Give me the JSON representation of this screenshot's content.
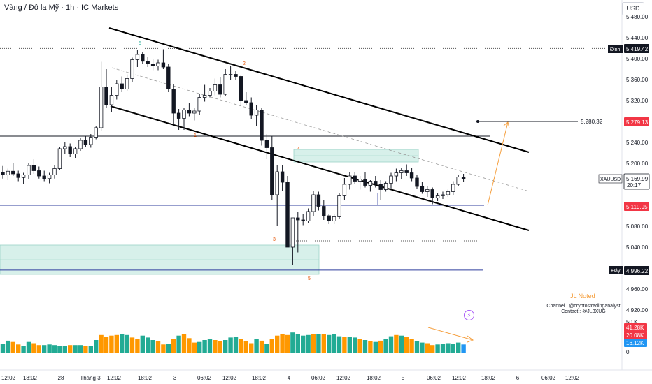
{
  "header": {
    "title": "Vàng / Đô la Mỹ · 1h · IC Markets",
    "currency": "USD"
  },
  "labels": {
    "top_label": "Đỉnh",
    "top_value": "5,419.42",
    "bottom_label": "Đáy",
    "bottom_value": "4,996.22",
    "target_value": "5,280.32",
    "level_high": "5,279.13",
    "symbol": "XAUUSD",
    "symbol_price": "5,169.99",
    "countdown": "20:17",
    "level_low": "5,119.95",
    "wave_5_top": "5",
    "wave_1": "1",
    "wave_2": "2",
    "wave_3": "3",
    "wave_4": "4",
    "wave_5_bottom": "5",
    "jl_note": "JL Noted",
    "channel_line1": "Channel : @cryptostradinganalyst",
    "channel_line2": "Contact : @JL3XUG",
    "alert_icon_glyph": "⚡"
  },
  "colors": {
    "up": "#131722",
    "down": "#131722",
    "vol_up": "#22ab94",
    "vol_down": "#ff9800",
    "vol_last": "#2196f3",
    "red_badge": "#f23645",
    "navy_badge": "#131722",
    "level_blue": "#2f3e9e",
    "zone": "#b2dfdb",
    "arrow": "#f59e3c"
  },
  "chart_data": {
    "type": "candlestick",
    "timeframe": "1h",
    "y_axis": {
      "min": 4940,
      "max": 5500,
      "ticks": [
        5480,
        5440,
        5400,
        5360,
        5320,
        5280,
        5240,
        5200,
        5160,
        5120,
        5080,
        5040,
        5000,
        4960,
        4920
      ]
    },
    "x_axis": {
      "ticks": [
        "12:02",
        "18:02",
        "28",
        "Tháng 3",
        "12:02",
        "18:02",
        "3",
        "06:02",
        "12:02",
        "18:02",
        "4",
        "06:02",
        "12:02",
        "18:02",
        "5",
        "06:02",
        "12:02",
        "18:02",
        "6",
        "06:02",
        "12:02"
      ]
    },
    "candles": [
      [
        5183,
        5195,
        5171,
        5178
      ],
      [
        5178,
        5190,
        5168,
        5185
      ],
      [
        5185,
        5200,
        5176,
        5180
      ],
      [
        5180,
        5186,
        5166,
        5173
      ],
      [
        5173,
        5182,
        5160,
        5178
      ],
      [
        5178,
        5200,
        5170,
        5196
      ],
      [
        5196,
        5208,
        5180,
        5186
      ],
      [
        5186,
        5194,
        5171,
        5176
      ],
      [
        5176,
        5186,
        5166,
        5171
      ],
      [
        5171,
        5182,
        5162,
        5178
      ],
      [
        5178,
        5196,
        5171,
        5190
      ],
      [
        5190,
        5232,
        5188,
        5228
      ],
      [
        5228,
        5240,
        5218,
        5232
      ],
      [
        5232,
        5238,
        5212,
        5218
      ],
      [
        5218,
        5232,
        5210,
        5228
      ],
      [
        5228,
        5248,
        5224,
        5244
      ],
      [
        5244,
        5252,
        5232,
        5236
      ],
      [
        5236,
        5256,
        5230,
        5250
      ],
      [
        5250,
        5272,
        5246,
        5268
      ],
      [
        5268,
        5394,
        5262,
        5346
      ],
      [
        5346,
        5380,
        5306,
        5312
      ],
      [
        5312,
        5346,
        5298,
        5330
      ],
      [
        5330,
        5360,
        5322,
        5352
      ],
      [
        5352,
        5366,
        5336,
        5342
      ],
      [
        5342,
        5370,
        5338,
        5362
      ],
      [
        5362,
        5402,
        5356,
        5398
      ],
      [
        5398,
        5416,
        5384,
        5408
      ],
      [
        5408,
        5413,
        5390,
        5395
      ],
      [
        5395,
        5404,
        5384,
        5390
      ],
      [
        5390,
        5400,
        5378,
        5386
      ],
      [
        5386,
        5398,
        5378,
        5392
      ],
      [
        5392,
        5418,
        5380,
        5384
      ],
      [
        5384,
        5390,
        5336,
        5342
      ],
      [
        5342,
        5352,
        5272,
        5296
      ],
      [
        5296,
        5304,
        5264,
        5286
      ],
      [
        5286,
        5306,
        5264,
        5302
      ],
      [
        5302,
        5316,
        5290,
        5296
      ],
      [
        5296,
        5306,
        5282,
        5300
      ],
      [
        5300,
        5332,
        5292,
        5326
      ],
      [
        5326,
        5350,
        5318,
        5330
      ],
      [
        5330,
        5344,
        5326,
        5338
      ],
      [
        5338,
        5362,
        5330,
        5350
      ],
      [
        5350,
        5364,
        5326,
        5332
      ],
      [
        5332,
        5380,
        5328,
        5370
      ],
      [
        5370,
        5386,
        5360,
        5370
      ],
      [
        5370,
        5376,
        5360,
        5366
      ],
      [
        5366,
        5368,
        5312,
        5320
      ],
      [
        5320,
        5336,
        5312,
        5316
      ],
      [
        5316,
        5326,
        5284,
        5292
      ],
      [
        5292,
        5312,
        5272,
        5302
      ],
      [
        5302,
        5306,
        5234,
        5244
      ],
      [
        5244,
        5256,
        5208,
        5230
      ],
      [
        5230,
        5252,
        5130,
        5140
      ],
      [
        5140,
        5196,
        5080,
        5184
      ],
      [
        5184,
        5196,
        5148,
        5164
      ],
      [
        5164,
        5176,
        5040,
        5040
      ],
      [
        5040,
        5096,
        5006,
        5096
      ],
      [
        5096,
        5108,
        5030,
        5092
      ],
      [
        5092,
        5104,
        5082,
        5090
      ],
      [
        5090,
        5114,
        5086,
        5108
      ],
      [
        5108,
        5148,
        5100,
        5140
      ],
      [
        5140,
        5146,
        5110,
        5118
      ],
      [
        5118,
        5130,
        5092,
        5100
      ],
      [
        5100,
        5104,
        5084,
        5090
      ],
      [
        5090,
        5104,
        5084,
        5098
      ],
      [
        5098,
        5144,
        5094,
        5138
      ],
      [
        5138,
        5172,
        5130,
        5160
      ],
      [
        5160,
        5184,
        5150,
        5176
      ],
      [
        5176,
        5184,
        5160,
        5166
      ],
      [
        5166,
        5176,
        5150,
        5170
      ],
      [
        5170,
        5184,
        5154,
        5158
      ],
      [
        5158,
        5168,
        5146,
        5166
      ],
      [
        5166,
        5176,
        5154,
        5160
      ],
      [
        5160,
        5168,
        5130,
        5150
      ],
      [
        5150,
        5166,
        5146,
        5162
      ],
      [
        5162,
        5182,
        5152,
        5176
      ],
      [
        5176,
        5190,
        5166,
        5182
      ],
      [
        5182,
        5192,
        5170,
        5186
      ],
      [
        5186,
        5198,
        5176,
        5182
      ],
      [
        5182,
        5192,
        5166,
        5172
      ],
      [
        5172,
        5178,
        5152,
        5156
      ],
      [
        5156,
        5164,
        5142,
        5146
      ],
      [
        5146,
        5156,
        5136,
        5150
      ],
      [
        5150,
        5154,
        5122,
        5134
      ],
      [
        5134,
        5144,
        5128,
        5138
      ],
      [
        5138,
        5146,
        5132,
        5140
      ],
      [
        5140,
        5150,
        5136,
        5146
      ],
      [
        5146,
        5166,
        5140,
        5160
      ],
      [
        5160,
        5178,
        5156,
        5174
      ],
      [
        5174,
        5180,
        5164,
        5170
      ]
    ],
    "volume": [
      [
        14,
        1
      ],
      [
        19,
        1
      ],
      [
        17,
        0
      ],
      [
        13,
        0
      ],
      [
        11,
        1
      ],
      [
        17,
        1
      ],
      [
        15,
        0
      ],
      [
        12,
        0
      ],
      [
        12,
        1
      ],
      [
        13,
        1
      ],
      [
        12,
        1
      ],
      [
        10,
        1
      ],
      [
        11,
        1
      ],
      [
        12,
        0
      ],
      [
        12,
        1
      ],
      [
        12,
        1
      ],
      [
        10,
        0
      ],
      [
        11,
        1
      ],
      [
        20,
        1
      ],
      [
        28,
        0
      ],
      [
        25,
        0
      ],
      [
        27,
        0
      ],
      [
        28,
        0
      ],
      [
        30,
        1
      ],
      [
        28,
        1
      ],
      [
        24,
        0
      ],
      [
        22,
        0
      ],
      [
        27,
        1
      ],
      [
        24,
        1
      ],
      [
        20,
        1
      ],
      [
        18,
        0
      ],
      [
        13,
        0
      ],
      [
        14,
        1
      ],
      [
        22,
        0
      ],
      [
        27,
        1
      ],
      [
        30,
        0
      ],
      [
        23,
        0
      ],
      [
        16,
        0
      ],
      [
        17,
        1
      ],
      [
        20,
        1
      ],
      [
        22,
        1
      ],
      [
        20,
        0
      ],
      [
        18,
        0
      ],
      [
        20,
        1
      ],
      [
        24,
        1
      ],
      [
        25,
        1
      ],
      [
        22,
        0
      ],
      [
        18,
        0
      ],
      [
        15,
        0
      ],
      [
        22,
        1
      ],
      [
        19,
        0
      ],
      [
        14,
        1
      ],
      [
        22,
        0
      ],
      [
        27,
        0
      ],
      [
        30,
        0
      ],
      [
        28,
        0
      ],
      [
        32,
        1
      ],
      [
        30,
        1
      ],
      [
        27,
        1
      ],
      [
        28,
        1
      ],
      [
        29,
        0
      ],
      [
        30,
        1
      ],
      [
        29,
        0
      ],
      [
        28,
        1
      ],
      [
        29,
        1
      ],
      [
        26,
        1
      ],
      [
        25,
        0
      ],
      [
        25,
        1
      ],
      [
        24,
        1
      ],
      [
        22,
        0
      ],
      [
        20,
        1
      ],
      [
        18,
        0
      ],
      [
        17,
        1
      ],
      [
        19,
        0
      ],
      [
        22,
        1
      ],
      [
        26,
        1
      ],
      [
        28,
        0
      ],
      [
        27,
        1
      ],
      [
        25,
        0
      ],
      [
        22,
        0
      ],
      [
        18,
        1
      ],
      [
        16,
        1
      ],
      [
        15,
        0
      ],
      [
        12,
        0
      ],
      [
        13,
        1
      ],
      [
        14,
        1
      ],
      [
        15,
        1
      ],
      [
        14,
        1
      ],
      [
        16,
        1
      ],
      [
        13,
        2
      ]
    ],
    "volume_axis": {
      "tick": "50 K",
      "zero": "0",
      "badges": [
        "41.28K",
        "20.08K",
        "16.12K"
      ]
    },
    "levels": [
      {
        "price": 5419.42,
        "style": "dotted"
      },
      {
        "price": 5252,
        "style": "solid"
      },
      {
        "price": 5169.99,
        "style": "dotted"
      },
      {
        "price": 5119.95,
        "style": "solid-blue"
      },
      {
        "price": 5094,
        "style": "solid"
      },
      {
        "price": 5052,
        "style": "dotted"
      },
      {
        "price": 5002,
        "style": "dotted"
      },
      {
        "price": 4996.22,
        "style": "solid-blue"
      }
    ]
  }
}
